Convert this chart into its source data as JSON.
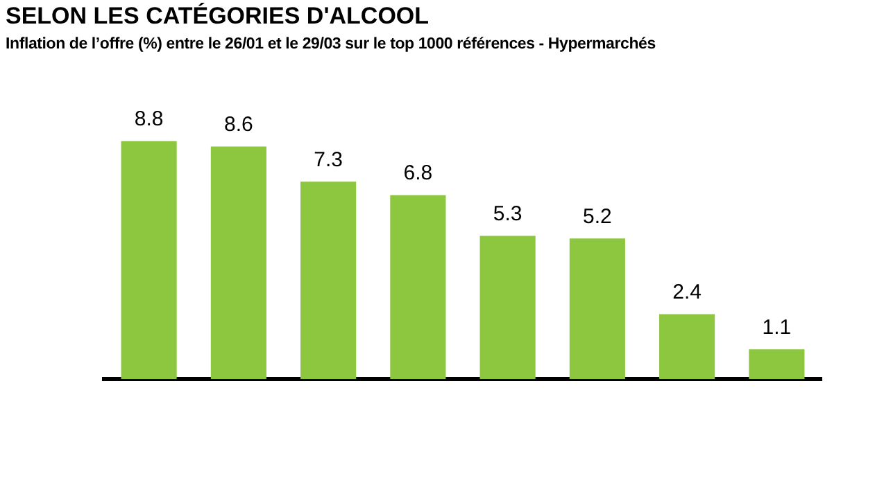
{
  "chart_data": {
    "type": "bar",
    "title": "SELON LES CATÉGORIES D'ALCOOL",
    "subtitle": "Inflation de l’offre (%) entre le 26/01 et le 29/03 sur le top 1000 références - Hypermarchés",
    "categories": [
      null,
      null,
      null,
      null,
      null,
      null,
      null,
      null
    ],
    "values": [
      8.8,
      8.6,
      7.3,
      6.8,
      5.3,
      5.2,
      2.4,
      1.1
    ],
    "color": "#8dc63f",
    "data_labels": true,
    "grid": false,
    "legend": false
  }
}
